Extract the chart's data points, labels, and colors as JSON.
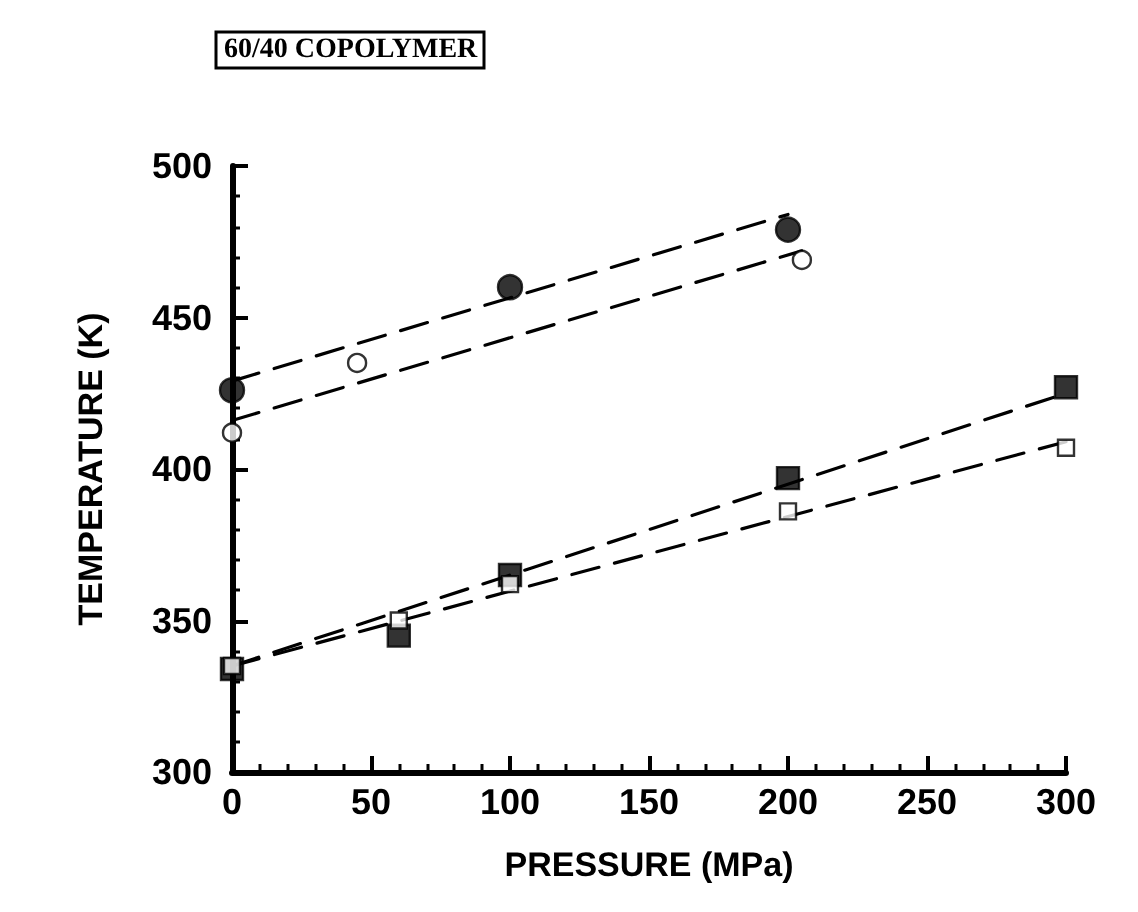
{
  "chart_data": {
    "type": "scatter",
    "title": "60/40 COPOLYMER",
    "xlabel": "PRESSURE (MPa)",
    "ylabel": "TEMPERATURE (K)",
    "xlim": [
      0,
      300
    ],
    "xticks": [
      0,
      50,
      100,
      150,
      200,
      250,
      300
    ],
    "ylim": [
      300,
      500
    ],
    "yticks": [
      300,
      350,
      400,
      450,
      500
    ],
    "grid": false,
    "series": [
      {
        "marker": "circle",
        "color": "#000000",
        "x": [
          0,
          100,
          200
        ],
        "values": [
          426,
          460,
          479
        ]
      },
      {
        "marker": "circle",
        "color": "#ffffff",
        "x": [
          0,
          45,
          205
        ],
        "values": [
          412,
          435,
          469
        ]
      },
      {
        "marker": "square",
        "color": "#000000",
        "x": [
          0,
          60,
          100,
          200,
          300
        ],
        "values": [
          334,
          345,
          365,
          397,
          427
        ]
      },
      {
        "marker": "square",
        "color": "#ffffff",
        "x": [
          0,
          60,
          100,
          200,
          300
        ],
        "values": [
          335,
          350,
          362,
          386,
          407
        ]
      },
      {
        "type": "line",
        "marker": "none",
        "line_style": "dashed",
        "color": "#000000",
        "x": [
          0,
          200
        ],
        "values": [
          429,
          484
        ]
      },
      {
        "type": "line",
        "marker": "none",
        "line_style": "dashed",
        "color": "#000000",
        "x": [
          0,
          205
        ],
        "values": [
          416,
          472
        ]
      },
      {
        "type": "line",
        "marker": "none",
        "line_style": "dashed",
        "color": "#000000",
        "x": [
          0,
          300
        ],
        "values": [
          335,
          425
        ]
      },
      {
        "type": "line",
        "marker": "none",
        "line_style": "dashed",
        "color": "#000000",
        "x": [
          0,
          300
        ],
        "values": [
          335,
          409
        ]
      }
    ]
  }
}
